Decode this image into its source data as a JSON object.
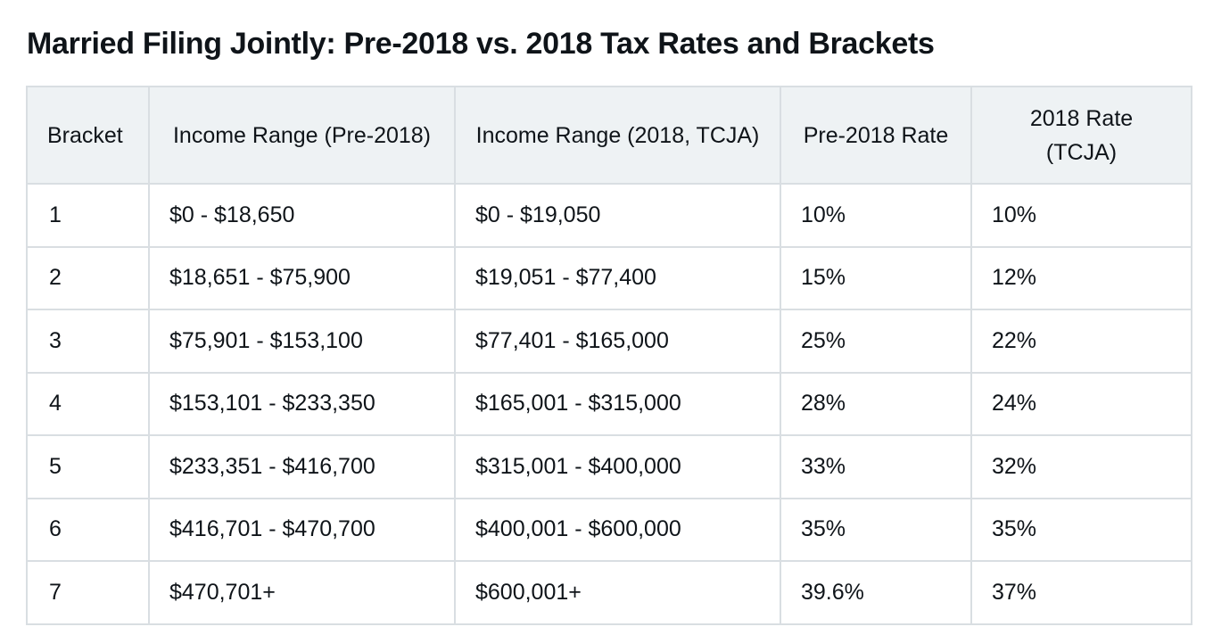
{
  "title": "Married Filing Jointly: Pre-2018 vs. 2018 Tax Rates and Brackets",
  "table": {
    "headers": [
      "Bracket",
      "Income Range (Pre-2018)",
      "Income Range (2018, TCJA)",
      "Pre-2018 Rate",
      "2018 Rate (TCJA)"
    ],
    "rows": [
      [
        "1",
        "$0 - $18,650",
        "$0 - $19,050",
        "10%",
        "10%"
      ],
      [
        "2",
        "$18,651 - $75,900",
        "$19,051 - $77,400",
        "15%",
        "12%"
      ],
      [
        "3",
        "$75,901 - $153,100",
        "$77,401 - $165,000",
        "25%",
        "22%"
      ],
      [
        "4",
        "$153,101 - $233,350",
        "$165,001 - $315,000",
        "28%",
        "24%"
      ],
      [
        "5",
        "$233,351 - $416,700",
        "$315,001 - $400,000",
        "33%",
        "32%"
      ],
      [
        "6",
        "$416,701 - $470,700",
        "$400,001 - $600,000",
        "35%",
        "35%"
      ],
      [
        "7",
        "$470,701+",
        "$600,001+",
        "39.6%",
        "37%"
      ]
    ]
  }
}
